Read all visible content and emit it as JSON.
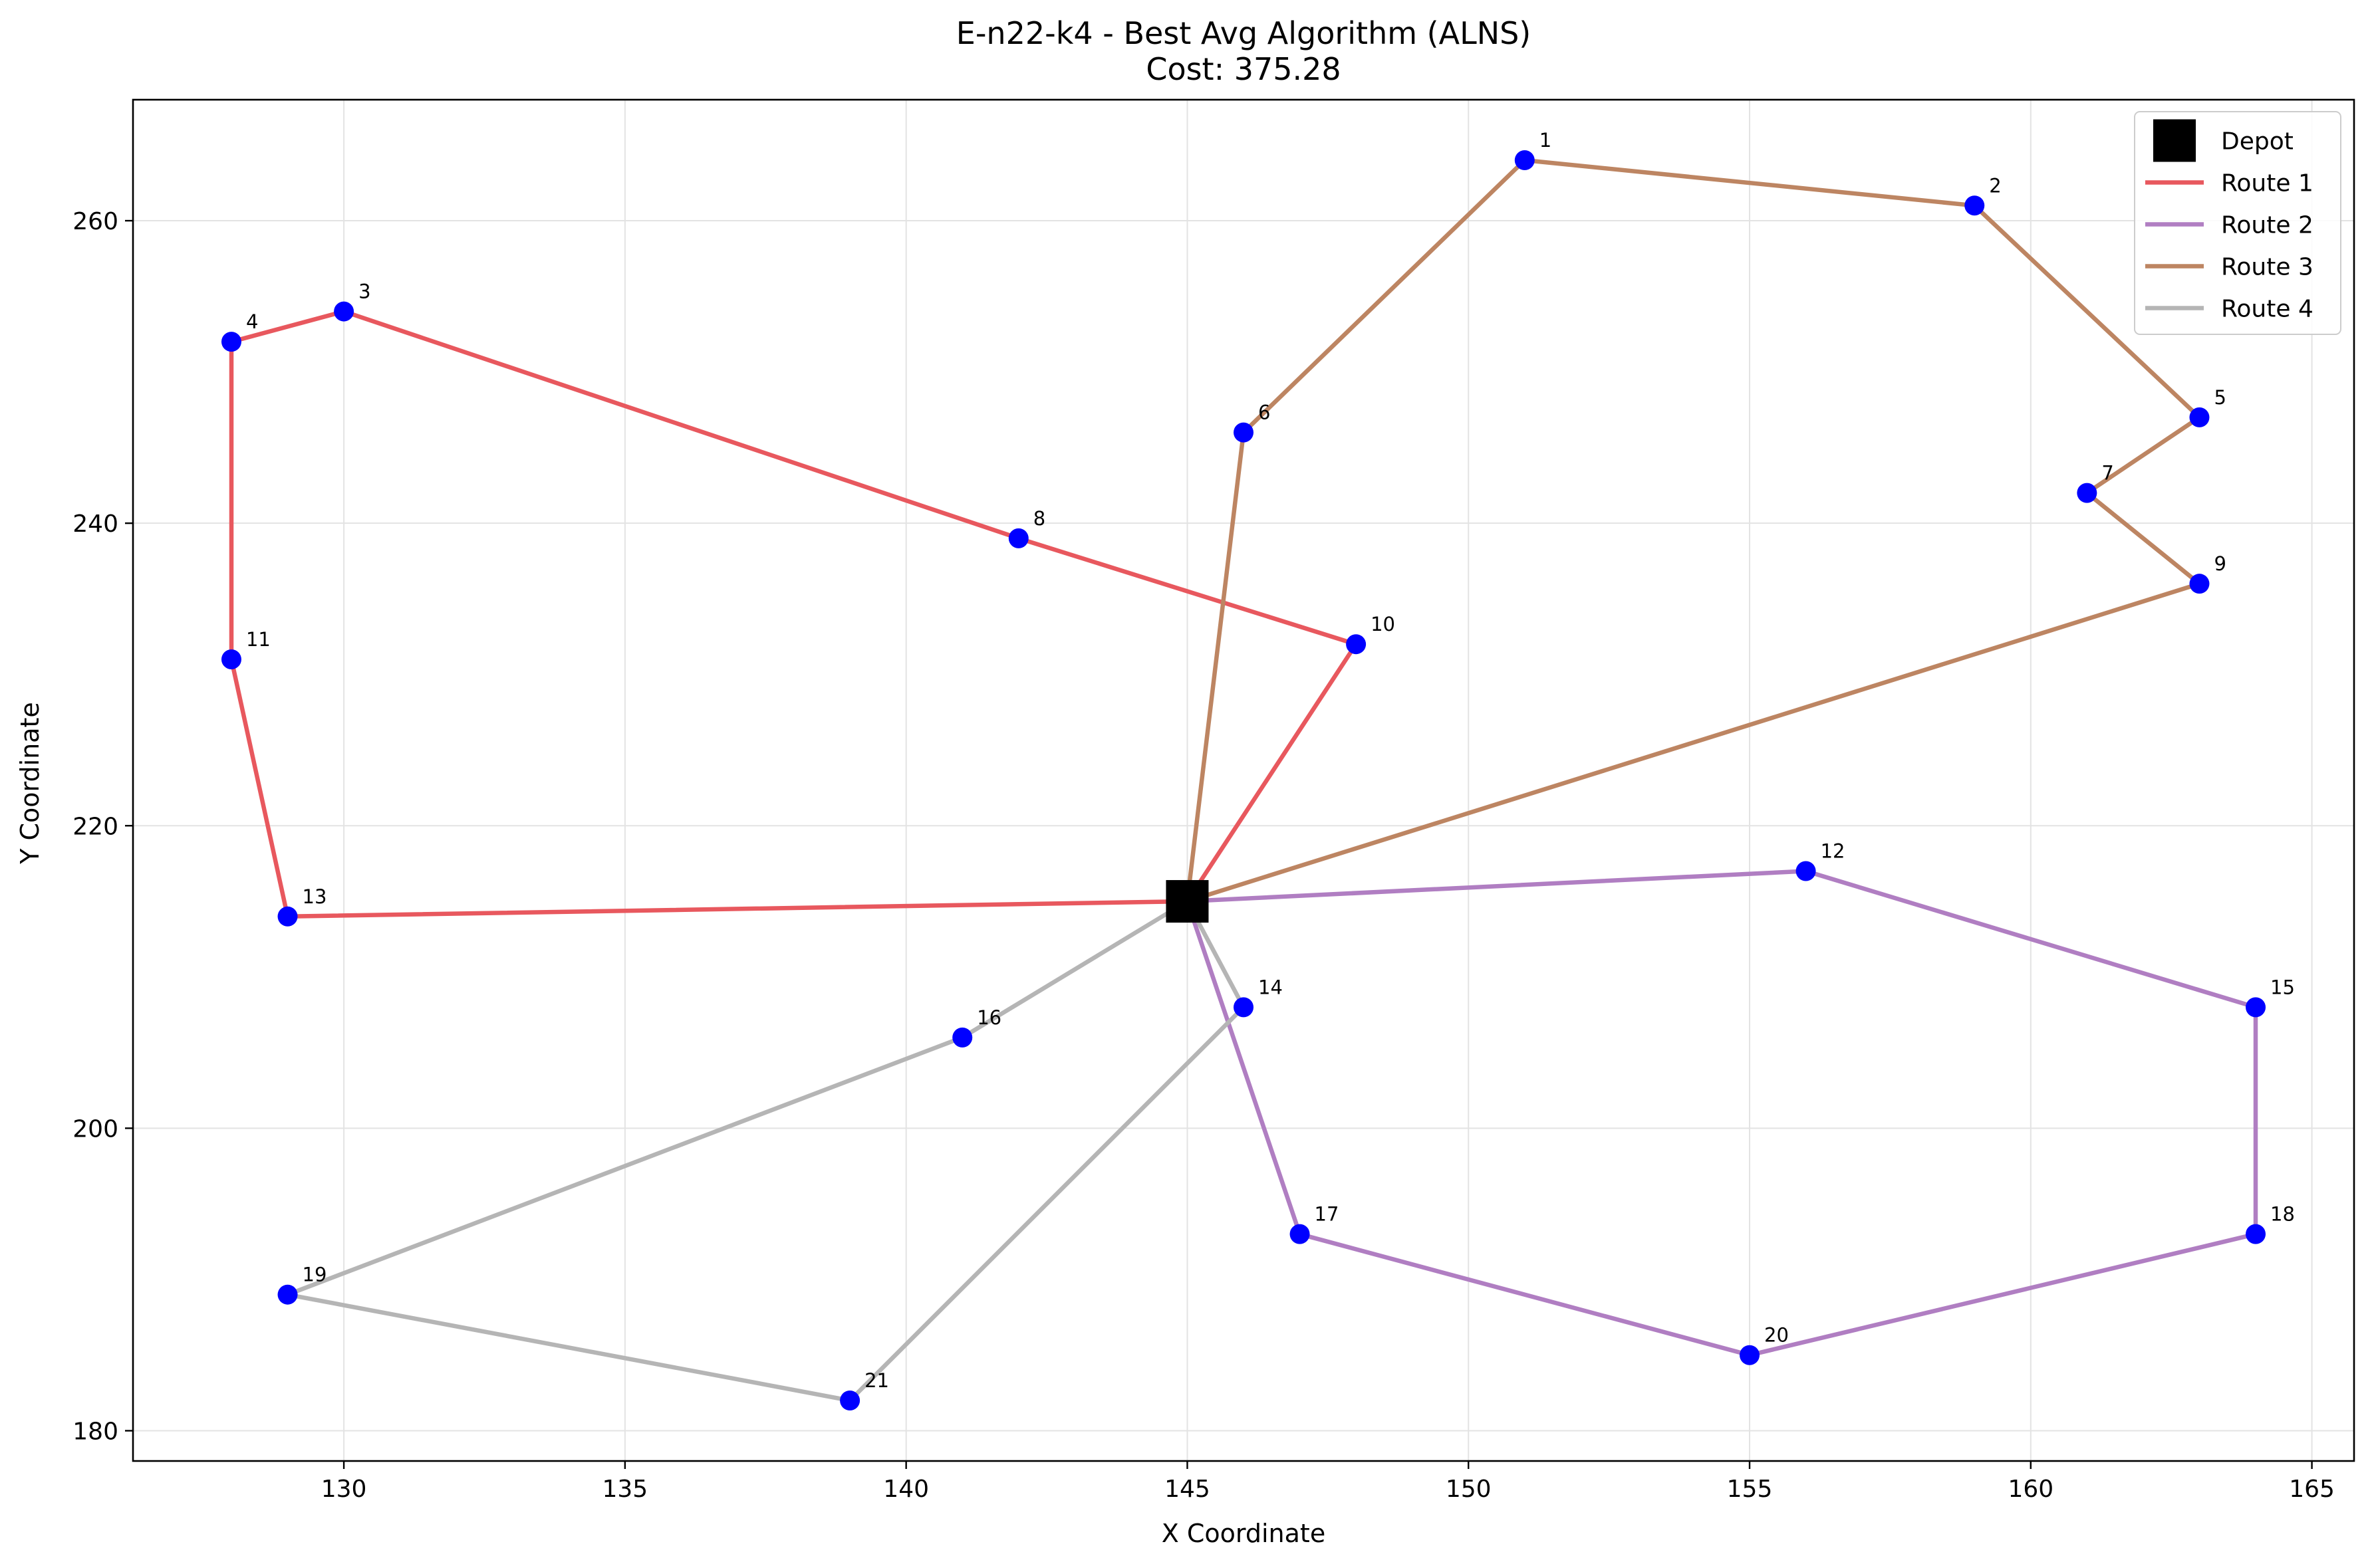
{
  "chart_data": {
    "type": "scatter",
    "title": "E-n22-k4 - Best Avg Algorithm (ALNS)",
    "subtitle": "Cost: 375.28",
    "xlabel": "X Coordinate",
    "ylabel": "Y Coordinate",
    "xlim": [
      126.25,
      165.75
    ],
    "ylim": [
      178,
      268
    ],
    "xticks": [
      130,
      135,
      140,
      145,
      150,
      155,
      160,
      165
    ],
    "yticks": [
      180,
      200,
      220,
      240,
      260
    ],
    "grid": true,
    "legend_position": "top-right",
    "depot": {
      "name": "Depot",
      "x": 145,
      "y": 215,
      "color": "#000000"
    },
    "customers": [
      {
        "id": "1",
        "x": 151,
        "y": 264
      },
      {
        "id": "2",
        "x": 159,
        "y": 261
      },
      {
        "id": "3",
        "x": 130,
        "y": 254
      },
      {
        "id": "4",
        "x": 128,
        "y": 252
      },
      {
        "id": "5",
        "x": 163,
        "y": 247
      },
      {
        "id": "6",
        "x": 146,
        "y": 246
      },
      {
        "id": "7",
        "x": 161,
        "y": 242
      },
      {
        "id": "8",
        "x": 142,
        "y": 239
      },
      {
        "id": "9",
        "x": 163,
        "y": 236
      },
      {
        "id": "10",
        "x": 148,
        "y": 232
      },
      {
        "id": "11",
        "x": 128,
        "y": 231
      },
      {
        "id": "12",
        "x": 156,
        "y": 217
      },
      {
        "id": "13",
        "x": 129,
        "y": 214
      },
      {
        "id": "14",
        "x": 146,
        "y": 208
      },
      {
        "id": "15",
        "x": 164,
        "y": 208
      },
      {
        "id": "16",
        "x": 141,
        "y": 206
      },
      {
        "id": "17",
        "x": 147,
        "y": 193
      },
      {
        "id": "18",
        "x": 164,
        "y": 193
      },
      {
        "id": "19",
        "x": 129,
        "y": 189
      },
      {
        "id": "20",
        "x": 155,
        "y": 185
      },
      {
        "id": "21",
        "x": 139,
        "y": 182
      }
    ],
    "customer_color": "#0000ff",
    "routes": [
      {
        "name": "Route 1",
        "color": "#e8585e",
        "stops": [
          "depot",
          "13",
          "11",
          "4",
          "3",
          "8",
          "10",
          "depot"
        ]
      },
      {
        "name": "Route 2",
        "color": "#b07ec2",
        "stops": [
          "depot",
          "12",
          "15",
          "18",
          "20",
          "17",
          "depot"
        ]
      },
      {
        "name": "Route 3",
        "color": "#bd8562",
        "stops": [
          "depot",
          "9",
          "7",
          "5",
          "2",
          "1",
          "6",
          "depot"
        ]
      },
      {
        "name": "Route 4",
        "color": "#b5b5b5",
        "stops": [
          "depot",
          "14",
          "21",
          "19",
          "16",
          "depot"
        ]
      }
    ]
  }
}
